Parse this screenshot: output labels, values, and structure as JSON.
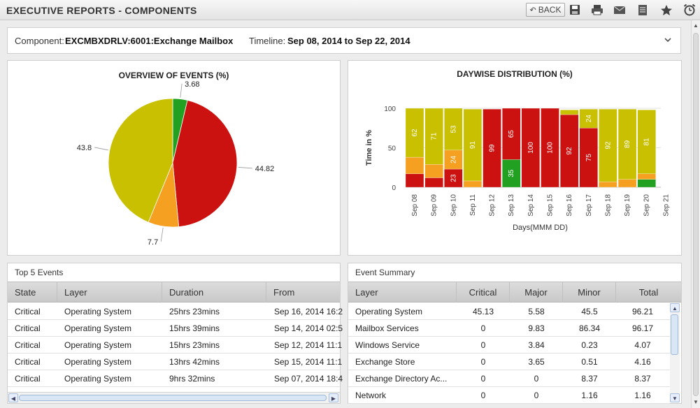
{
  "header": {
    "title": "EXECUTIVE REPORTS - COMPONENTS",
    "back_label": "BACK",
    "toolbar_icons": [
      "save-icon",
      "print-icon",
      "mail-icon",
      "document-icon",
      "star-icon",
      "alarm-clock-icon"
    ]
  },
  "filter": {
    "component_label": "Component:",
    "component_value": "EXCMBXDRLV:6001:Exchange Mailbox",
    "timeline_label": "Timeline:",
    "timeline_value": "Sep 08, 2014 to Sep 22, 2014"
  },
  "pie_chart_data": {
    "type": "pie",
    "title": "OVERVIEW OF EVENTS (%)",
    "slices": [
      {
        "label": "3.68",
        "value": 3.68,
        "color": "#22a022"
      },
      {
        "label": "44.82",
        "value": 44.82,
        "color": "#cc1111"
      },
      {
        "label": "7.7",
        "value": 7.7,
        "color": "#f5a020"
      },
      {
        "label": "43.8",
        "value": 43.8,
        "color": "#c8c000"
      }
    ]
  },
  "chart_data": {
    "type": "bar",
    "title": "DAYWISE DISTRIBUTION (%)",
    "xlabel": "Days(MMM DD)",
    "ylabel": "Time in %",
    "ylim": [
      0,
      100
    ],
    "yticks": [
      0,
      50,
      100
    ],
    "categories": [
      "Sep 08",
      "Sep 09",
      "Sep 10",
      "Sep 11",
      "Sep 12",
      "Sep 13",
      "Sep 14",
      "Sep 15",
      "Sep 16",
      "Sep 17",
      "Sep 18",
      "Sep 19",
      "Sep 20",
      "Sep 21"
    ],
    "series": [
      {
        "key": "clear",
        "color": "#22a022",
        "values": [
          0,
          0,
          0,
          0,
          0,
          35,
          0,
          0,
          0,
          0,
          0,
          0,
          10,
          0
        ],
        "labels": [
          "",
          "",
          "",
          "",
          "",
          "35",
          "",
          "",
          "",
          "",
          "",
          "",
          "",
          ""
        ]
      },
      {
        "key": "critical",
        "color": "#cc1111",
        "values": [
          17,
          12,
          23,
          0,
          99,
          65,
          100,
          100,
          92,
          75,
          0,
          0,
          0,
          0
        ],
        "labels": [
          "",
          "",
          "23",
          "",
          "99",
          "65",
          "100",
          "100",
          "92",
          "75",
          "",
          "",
          "",
          ""
        ]
      },
      {
        "key": "major",
        "color": "#f5a020",
        "values": [
          21,
          17,
          24,
          8,
          0,
          0,
          0,
          0,
          0,
          0,
          7,
          10,
          7,
          0
        ],
        "labels": [
          "",
          "",
          "24",
          "",
          "",
          "",
          "",
          "",
          "",
          "",
          "",
          "",
          "",
          ""
        ]
      },
      {
        "key": "minor",
        "color": "#c8c000",
        "values": [
          62,
          71,
          53,
          91,
          0,
          0,
          0,
          0,
          6,
          24,
          92,
          89,
          81,
          0
        ],
        "labels": [
          "62",
          "71",
          "53",
          "91",
          "",
          "",
          "",
          "",
          "",
          "24",
          "92",
          "89",
          "81",
          ""
        ]
      }
    ]
  },
  "top_events": {
    "title": "Top 5 Events",
    "columns": [
      "State",
      "Layer",
      "Duration",
      "From"
    ],
    "rows": [
      [
        "Critical",
        "Operating System",
        "25hrs 23mins",
        "Sep 16, 2014 16:2"
      ],
      [
        "Critical",
        "Operating System",
        "15hrs 39mins",
        "Sep 14, 2014 02:5"
      ],
      [
        "Critical",
        "Operating System",
        "15hrs 23mins",
        "Sep 12, 2014 11:1"
      ],
      [
        "Critical",
        "Operating System",
        "13hrs 42mins",
        "Sep 15, 2014 11:1"
      ],
      [
        "Critical",
        "Operating System",
        "9hrs 32mins",
        "Sep 07, 2014 18:4"
      ]
    ]
  },
  "event_summary": {
    "title": "Event Summary",
    "columns": [
      "Layer",
      "Critical",
      "Major",
      "Minor",
      "Total"
    ],
    "rows": [
      [
        "Operating System",
        "45.13",
        "5.58",
        "45.5",
        "96.21"
      ],
      [
        "Mailbox Services",
        "0",
        "9.83",
        "86.34",
        "96.17"
      ],
      [
        "Windows Service",
        "0",
        "3.84",
        "0.23",
        "4.07"
      ],
      [
        "Exchange Store",
        "0",
        "3.65",
        "0.51",
        "4.16"
      ],
      [
        "Exchange Directory Ac...",
        "0",
        "0",
        "8.37",
        "8.37"
      ],
      [
        "Network",
        "0",
        "0",
        "1.16",
        "1.16"
      ]
    ]
  }
}
